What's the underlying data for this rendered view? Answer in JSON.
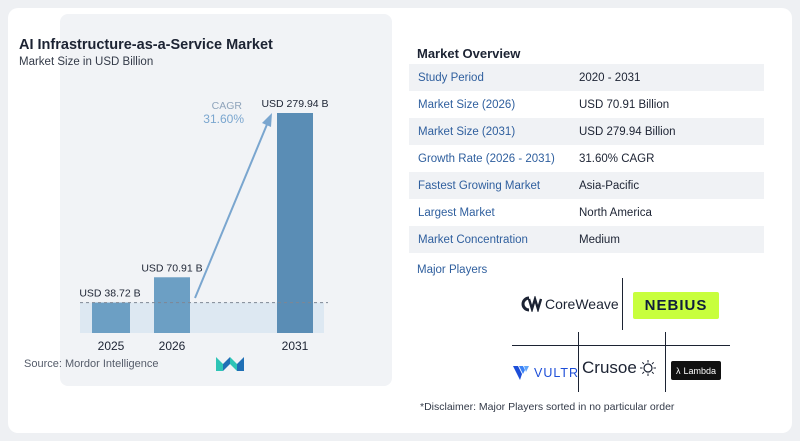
{
  "chart_data": {
    "type": "bar",
    "title": "AI Infrastructure-as-a-Service Market",
    "subtitle": "Market Size in USD Billion",
    "categories": [
      "2025",
      "2026",
      "2031"
    ],
    "values": [
      38.72,
      70.91,
      279.94
    ],
    "value_labels": [
      "USD 38.72 B",
      "USD 70.91 B",
      "USD 279.94 B"
    ],
    "cagr_label": "CAGR",
    "cagr_value": "31.60%",
    "source": "Source:  Mordor Intelligence",
    "colors": {
      "bar": "#6c9fc4",
      "bar_dark": "#5a8db5",
      "shade": "#dde8f2",
      "arrow": "#7aa6cf",
      "cagr": "#7aa6cf"
    }
  },
  "overview": {
    "title": "Market Overview",
    "rows": [
      {
        "label": "Study Period",
        "value": "2020 - 2031"
      },
      {
        "label": "Market Size (2026)",
        "value": "USD 70.91 Billion"
      },
      {
        "label": "Market Size (2031)",
        "value": "USD 279.94 Billion"
      },
      {
        "label": "Growth Rate (2026 - 2031)",
        "value": "31.60% CAGR"
      },
      {
        "label": "Fastest Growing Market",
        "value": "Asia-Pacific"
      },
      {
        "label": "Largest Market",
        "value": "North America"
      },
      {
        "label": "Market Concentration",
        "value": "Medium"
      }
    ]
  },
  "players": {
    "label": "Major Players",
    "logos": {
      "coreweave": "CoreWeave",
      "nebius": "NEBIUS",
      "vultr": "VULTR",
      "crusoe": "Crusoe",
      "lambda": "Lambda"
    },
    "colors": {
      "nebius_bg": "#c8ff3d",
      "vultr": "#1d4ed8",
      "lambda_bg": "#111111"
    }
  },
  "disclaimer": "*Disclaimer: Major Players sorted in no particular order"
}
